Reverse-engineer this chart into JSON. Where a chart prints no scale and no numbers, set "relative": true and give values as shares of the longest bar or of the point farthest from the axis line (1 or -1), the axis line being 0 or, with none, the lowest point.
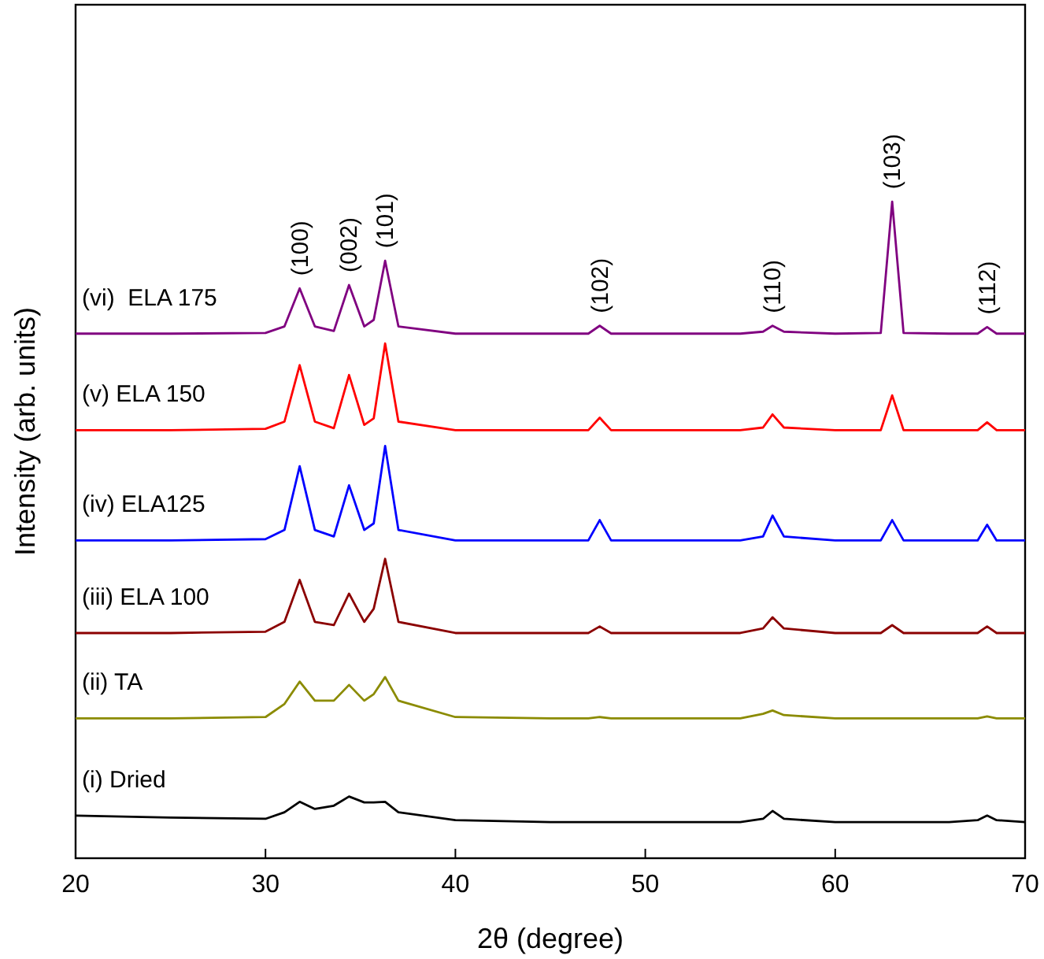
{
  "chart_data": {
    "type": "line",
    "relative": true,
    "xlabel": "2θ (degree)",
    "ylabel": "Intensity (arb. units)",
    "xlim": [
      20,
      70
    ],
    "xticks": [
      20,
      30,
      40,
      50,
      60,
      70
    ],
    "tick_labels": "x",
    "grid": false,
    "marker": "none",
    "line_style": "solid",
    "x": [
      20,
      25,
      30,
      31,
      31.8,
      32.6,
      33.6,
      34.4,
      35.2,
      35.7,
      36.3,
      37,
      40,
      45,
      47,
      47.6,
      48.2,
      50,
      55,
      56.2,
      56.7,
      57.3,
      60,
      62.4,
      63,
      63.6,
      66,
      67.5,
      68,
      68.5,
      70
    ],
    "series": [
      {
        "name": "(i) Dried",
        "color": "#000000",
        "values": [
          0.065,
          0.062,
          0.06,
          0.07,
          0.086,
          0.075,
          0.08,
          0.094,
          0.085,
          0.085,
          0.086,
          0.07,
          0.058,
          0.055,
          0.055,
          0.055,
          0.055,
          0.055,
          0.055,
          0.06,
          0.072,
          0.06,
          0.055,
          0.055,
          0.055,
          0.055,
          0.055,
          0.058,
          0.065,
          0.058,
          0.055
        ]
      },
      {
        "name": "(ii) TA",
        "color": "#8b8b00",
        "values": [
          0.213,
          0.213,
          0.215,
          0.235,
          0.269,
          0.24,
          0.24,
          0.264,
          0.24,
          0.25,
          0.276,
          0.24,
          0.215,
          0.213,
          0.213,
          0.215,
          0.213,
          0.213,
          0.213,
          0.22,
          0.225,
          0.218,
          0.213,
          0.213,
          0.213,
          0.213,
          0.213,
          0.213,
          0.216,
          0.213,
          0.213
        ]
      },
      {
        "name": "(iii) ELA 100",
        "color": "#8b0000",
        "values": [
          0.343,
          0.343,
          0.345,
          0.36,
          0.424,
          0.36,
          0.355,
          0.403,
          0.36,
          0.38,
          0.456,
          0.36,
          0.343,
          0.343,
          0.343,
          0.353,
          0.343,
          0.343,
          0.343,
          0.35,
          0.367,
          0.35,
          0.343,
          0.343,
          0.355,
          0.343,
          0.343,
          0.343,
          0.353,
          0.343,
          0.343
        ]
      },
      {
        "name": "(iv) ELA125",
        "color": "#0000ff",
        "values": [
          0.484,
          0.484,
          0.486,
          0.5,
          0.597,
          0.5,
          0.49,
          0.568,
          0.5,
          0.51,
          0.628,
          0.5,
          0.484,
          0.484,
          0.484,
          0.515,
          0.484,
          0.484,
          0.484,
          0.49,
          0.522,
          0.49,
          0.484,
          0.484,
          0.515,
          0.484,
          0.484,
          0.484,
          0.508,
          0.484,
          0.484
        ]
      },
      {
        "name": "(v) ELA 150",
        "color": "#ff0000",
        "values": [
          0.652,
          0.652,
          0.654,
          0.665,
          0.751,
          0.665,
          0.655,
          0.736,
          0.66,
          0.67,
          0.784,
          0.665,
          0.652,
          0.652,
          0.652,
          0.671,
          0.652,
          0.652,
          0.652,
          0.656,
          0.676,
          0.656,
          0.652,
          0.652,
          0.705,
          0.652,
          0.652,
          0.652,
          0.664,
          0.652,
          0.652
        ]
      },
      {
        "name": "(vi)  ELA 175",
        "color": "#800080",
        "values": [
          0.799,
          0.799,
          0.8,
          0.81,
          0.868,
          0.81,
          0.803,
          0.873,
          0.81,
          0.82,
          0.91,
          0.81,
          0.799,
          0.799,
          0.799,
          0.811,
          0.799,
          0.799,
          0.799,
          0.802,
          0.811,
          0.802,
          0.799,
          0.8,
          1.0,
          0.8,
          0.799,
          0.799,
          0.809,
          0.799,
          0.799
        ]
      }
    ],
    "annotations": [
      "(100)",
      "(002)",
      "(101)",
      "(102)",
      "(110)",
      "(103)",
      "(112)"
    ]
  }
}
